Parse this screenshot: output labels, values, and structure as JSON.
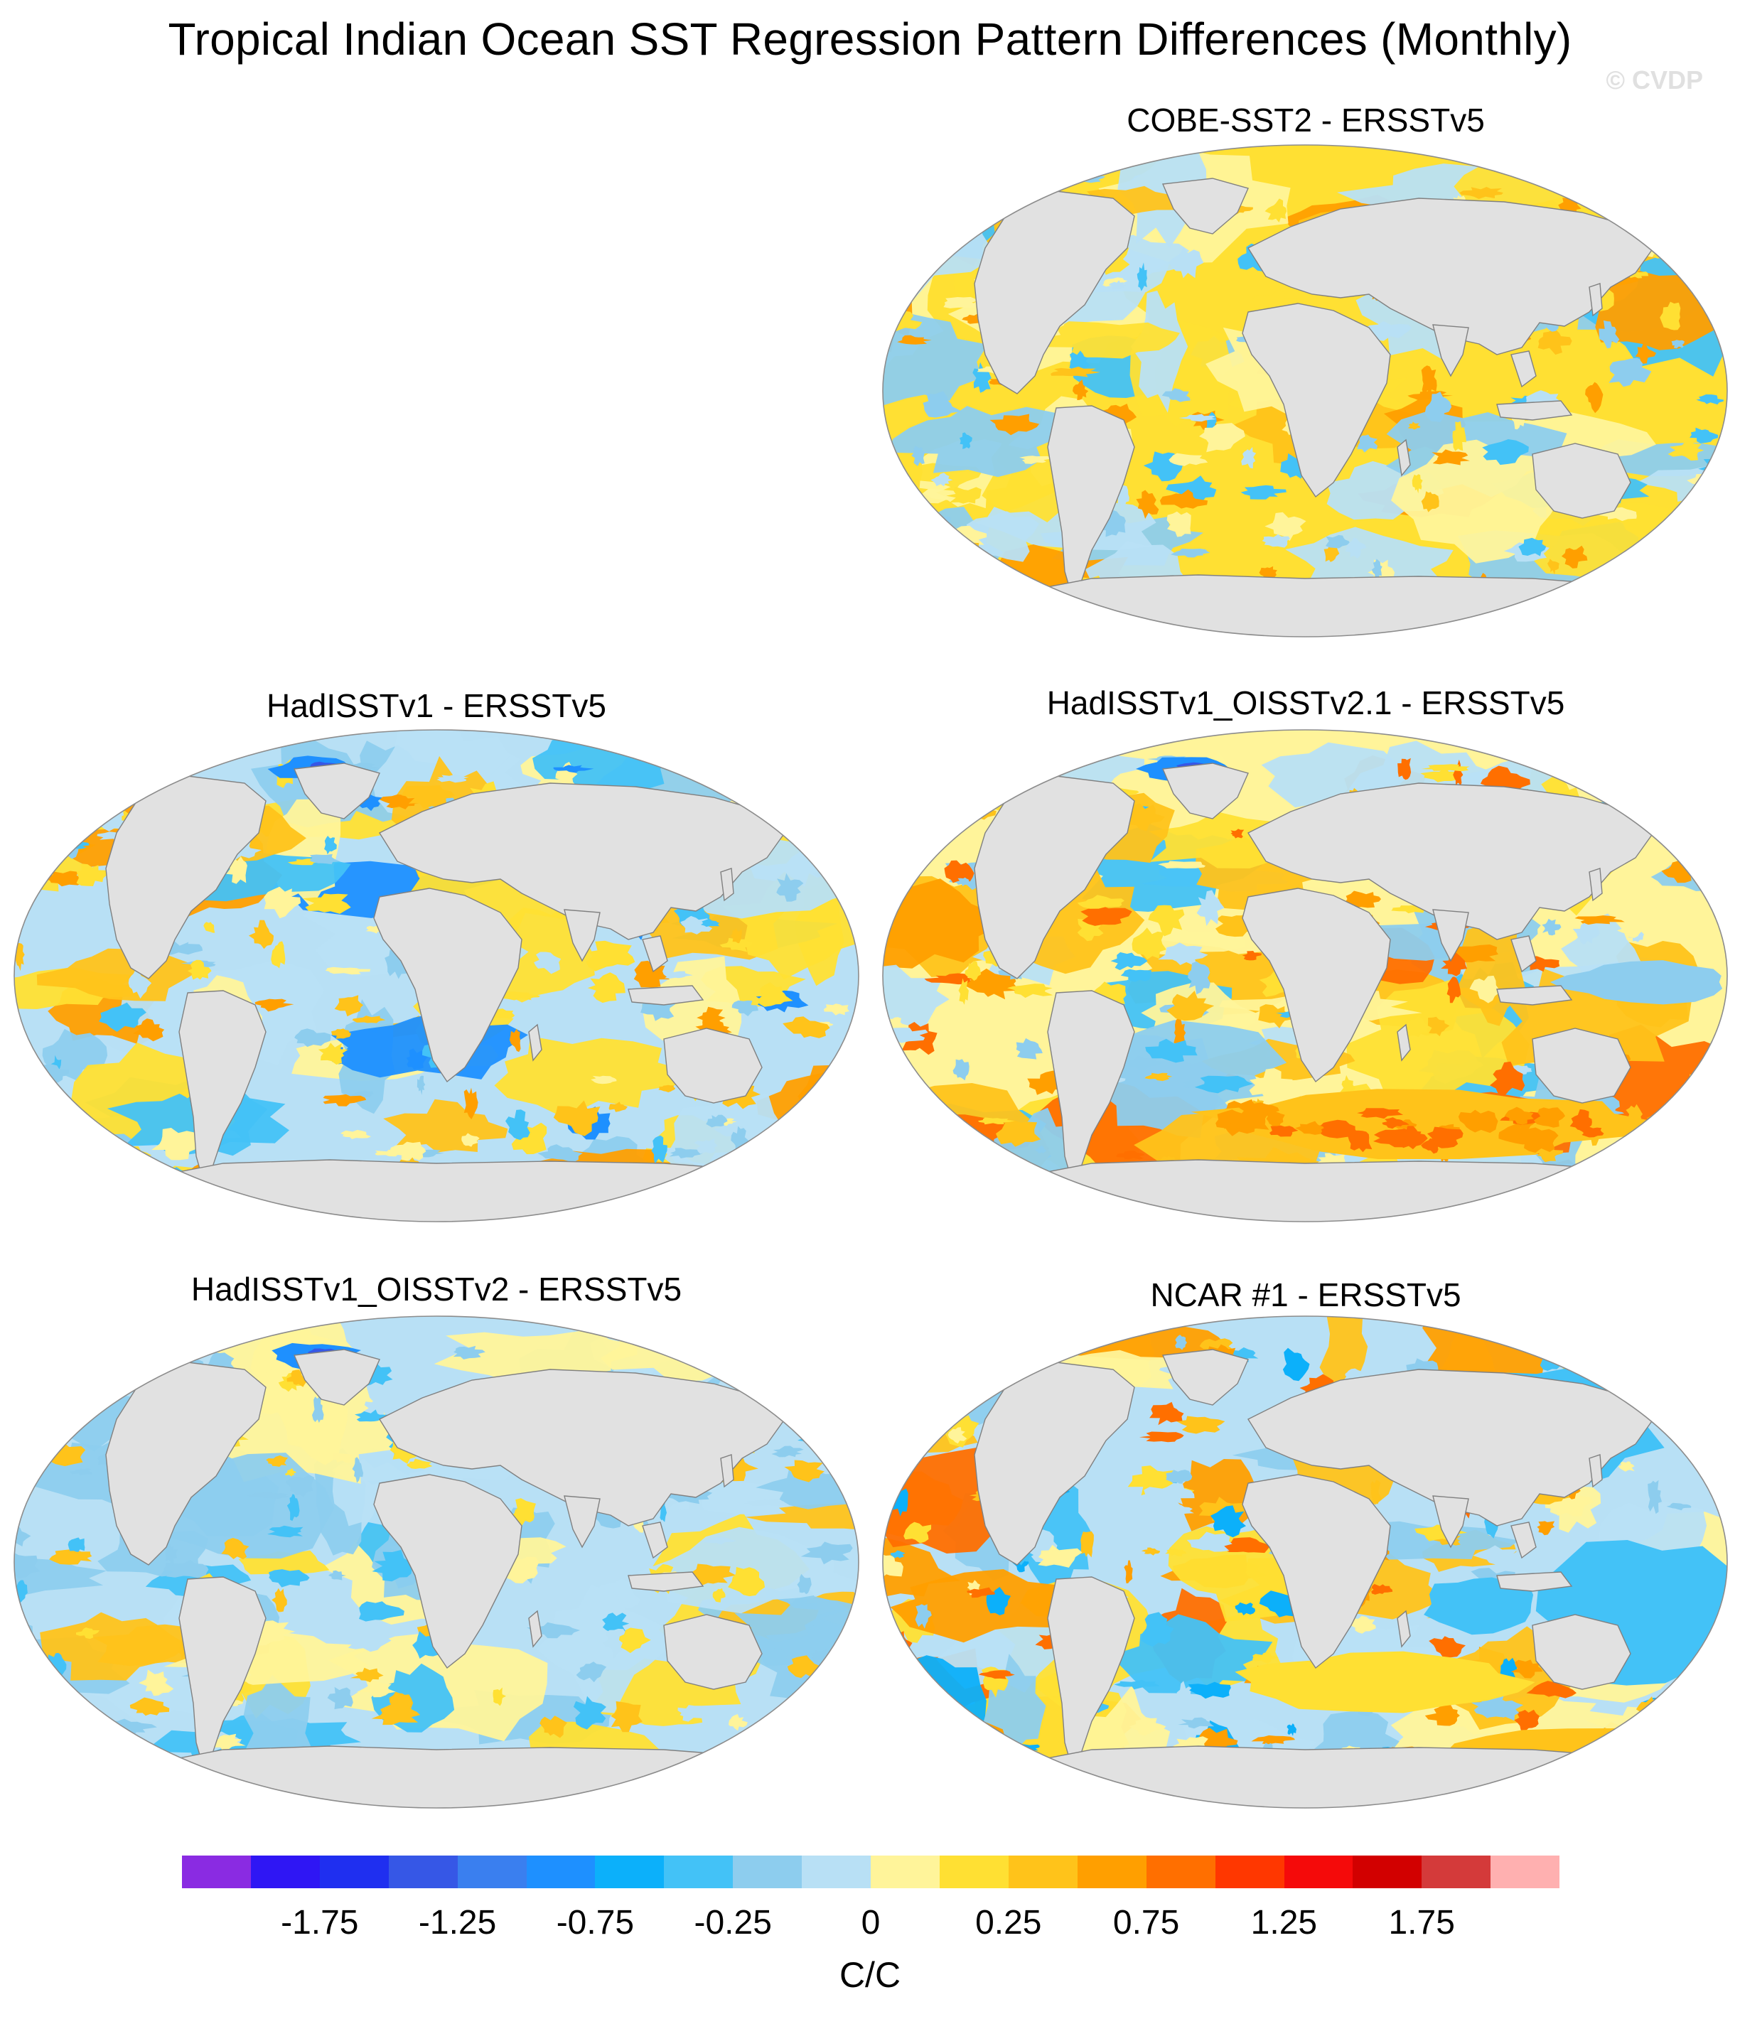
{
  "title": "Tropical Indian Ocean SST Regression Pattern Differences (Monthly)",
  "watermark": "© CVDP",
  "panels": [
    {
      "id": "cobe",
      "title": "COBE-SST2 - ERSSTv5",
      "theme": "warm-mixed"
    },
    {
      "id": "hadisst",
      "title": "HadISSTv1 - ERSSTv5",
      "theme": "mixed-cool"
    },
    {
      "id": "hadisst_oi21",
      "title": "HadISSTv1_OISSTv2.1 - ERSSTv5",
      "theme": "warm-south"
    },
    {
      "id": "hadisst_oi2",
      "title": "HadISSTv1_OISSTv2 - ERSSTv5",
      "theme": "cool-mixed"
    },
    {
      "id": "ncar1",
      "title": "NCAR #1 - ERSSTv5",
      "theme": "strong-contrast"
    }
  ],
  "colorbar": {
    "units": "C/C",
    "tick_labels": [
      "-1.75",
      "-1.25",
      "-0.75",
      "-0.25",
      "0",
      "0.25",
      "0.75",
      "1.25",
      "1.75"
    ],
    "colors": [
      "#8a2be2",
      "#2f16f4",
      "#1f2ff0",
      "#3657e6",
      "#3a7fef",
      "#1e90ff",
      "#0cb0fa",
      "#43c2f7",
      "#8dcdee",
      "#b8e0f5",
      "#fff49a",
      "#ffe033",
      "#ffc31a",
      "#ff9f00",
      "#ff6f00",
      "#ff3700",
      "#f50a0a",
      "#d20000",
      "#d43a3a",
      "#ffb0b0"
    ]
  }
}
